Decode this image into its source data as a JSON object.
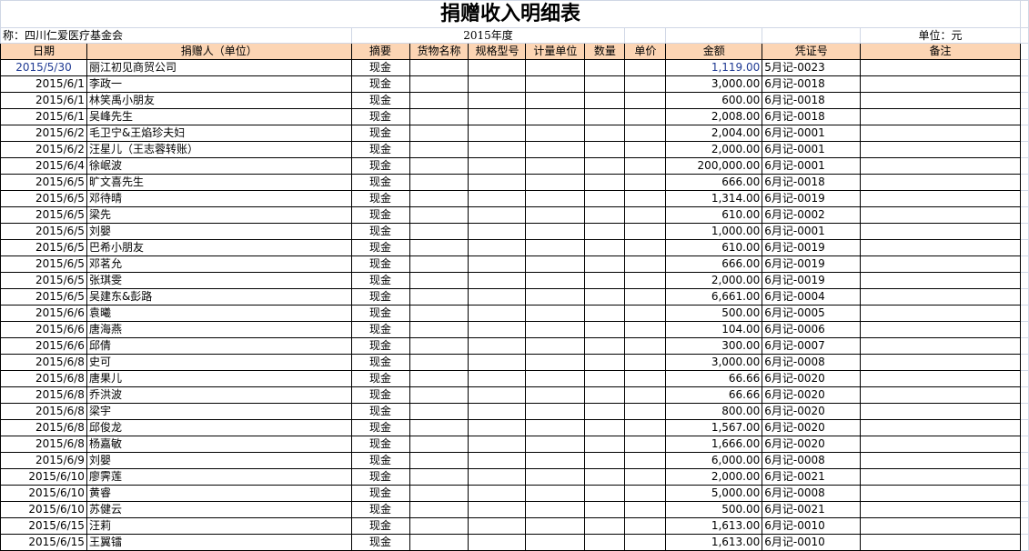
{
  "title": "捐赠收入明细表",
  "org_label": "称：四川仁爱医疗基金会",
  "year": "2015年度",
  "unit": "单位：元",
  "headers": [
    "日期",
    "捐赠人（单位）",
    "摘要",
    "货物名称",
    "规格型号",
    "计量单位",
    "数量",
    "单价",
    "金额",
    "凭证号",
    "备注"
  ],
  "rows": [
    [
      "2015/5/30",
      "丽江初见商贸公司",
      "现金",
      "1,119.00",
      "5月记-0023"
    ],
    [
      "2015/6/1",
      "李政一",
      "现金",
      "3,000.00",
      "6月记-0018"
    ],
    [
      "2015/6/1",
      "林笑禹小朋友",
      "现金",
      "600.00",
      "6月记-0018"
    ],
    [
      "2015/6/1",
      "吴峰先生",
      "现金",
      "2,008.00",
      "6月记-0018"
    ],
    [
      "2015/6/2",
      "毛卫宁&王焰珍夫妇",
      "现金",
      "2,004.00",
      "6月记-0001"
    ],
    [
      "2015/6/2",
      "汪星儿（王志蓉转账）",
      "现金",
      "2,000.00",
      "6月记-0001"
    ],
    [
      "2015/6/4",
      "徐岷波",
      "现金",
      "200,000.00",
      "6月记-0001"
    ],
    [
      "2015/6/5",
      "旷文喜先生",
      "现金",
      "666.00",
      "6月记-0018"
    ],
    [
      "2015/6/5",
      "邓待晴",
      "现金",
      "1,314.00",
      "6月记-0019"
    ],
    [
      "2015/6/5",
      "梁先",
      "现金",
      "610.00",
      "6月记-0002"
    ],
    [
      "2015/6/5",
      "刘嬰",
      "现金",
      "1,000.00",
      "6月记-0001"
    ],
    [
      "2015/6/5",
      "巴希小朋友",
      "现金",
      "610.00",
      "6月记-0019"
    ],
    [
      "2015/6/5",
      "邓茗允",
      "现金",
      "666.00",
      "6月记-0019"
    ],
    [
      "2015/6/5",
      "张琪雯",
      "现金",
      "2,000.00",
      "6月记-0019"
    ],
    [
      "2015/6/5",
      "吴建东&彭路",
      "现金",
      "6,661.00",
      "6月记-0004"
    ],
    [
      "2015/6/6",
      "袁曦",
      "现金",
      "500.00",
      "6月记-0005"
    ],
    [
      "2015/6/6",
      "唐海燕",
      "现金",
      "104.00",
      "6月记-0006"
    ],
    [
      "2015/6/6",
      "邱倩",
      "现金",
      "300.00",
      "6月记-0007"
    ],
    [
      "2015/6/8",
      "史可",
      "现金",
      "3,000.00",
      "6月记-0008"
    ],
    [
      "2015/6/8",
      "唐果儿",
      "现金",
      "66.66",
      "6月记-0020"
    ],
    [
      "2015/6/8",
      "乔洪波",
      "现金",
      "66.66",
      "6月记-0020"
    ],
    [
      "2015/6/8",
      "梁宇",
      "现金",
      "800.00",
      "6月记-0020"
    ],
    [
      "2015/6/8",
      "邱俊龙",
      "现金",
      "1,567.00",
      "6月记-0020"
    ],
    [
      "2015/6/8",
      "杨嘉敏",
      "现金",
      "1,666.00",
      "6月记-0020"
    ],
    [
      "2015/6/9",
      "刘嬰",
      "现金",
      "6,000.00",
      "6月记-0008"
    ],
    [
      "2015/6/10",
      "廖霁莲",
      "现金",
      "2,000.00",
      "6月记-0021"
    ],
    [
      "2015/6/10",
      "黄睿",
      "现金",
      "5,000.00",
      "6月记-0008"
    ],
    [
      "2015/6/10",
      "苏健云",
      "现金",
      "500.00",
      "6月记-0021"
    ],
    [
      "2015/6/15",
      "汪莉",
      "现金",
      "1,613.00",
      "6月记-0010"
    ],
    [
      "2015/6/15",
      "王翼镭",
      "现金",
      "1,613.00",
      "6月记-0010"
    ]
  ]
}
